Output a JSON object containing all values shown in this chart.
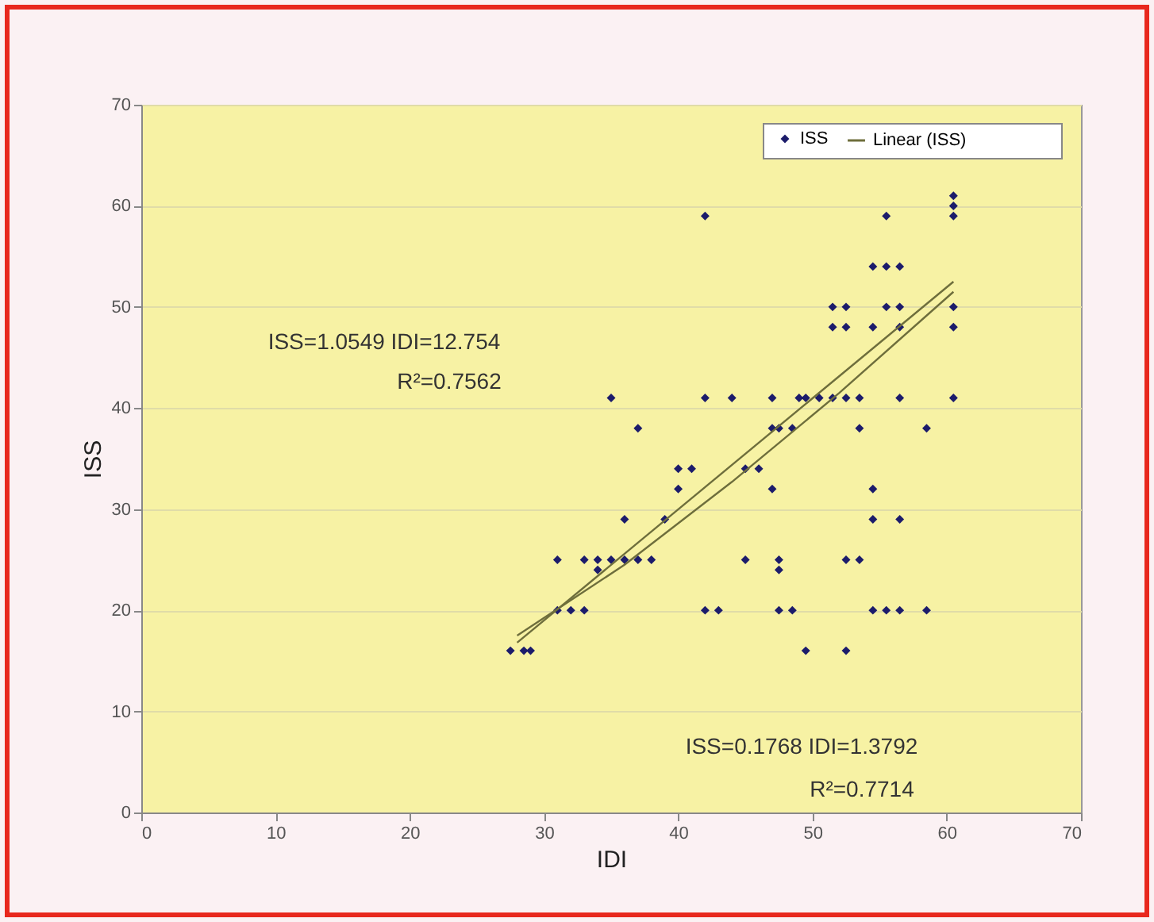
{
  "chart_data": {
    "type": "scatter",
    "xlabel": "IDI",
    "ylabel": "ISS",
    "xlim": [
      0,
      70
    ],
    "ylim": [
      0,
      70
    ],
    "xticks": [
      0,
      10,
      20,
      30,
      40,
      50,
      60,
      70
    ],
    "yticks": [
      0,
      10,
      20,
      30,
      40,
      50,
      60,
      70
    ],
    "grid": "y",
    "legend": "top right",
    "series": [
      {
        "name": "ISS",
        "marker": "diamond",
        "color": "#1c1c6b",
        "x": [
          27.5,
          28.5,
          29,
          49.5,
          52.5,
          31,
          32,
          33,
          42,
          43,
          47.5,
          48.5,
          54.5,
          55.5,
          56.5,
          58.5,
          34,
          47.5,
          31,
          33,
          34,
          35,
          36,
          37,
          38,
          45,
          47.5,
          52.5,
          53.5,
          36,
          39,
          54.5,
          56.5,
          40,
          47,
          54.5,
          40,
          41,
          45,
          46,
          37,
          47,
          47.5,
          48.5,
          53.5,
          58.5,
          35,
          42,
          44,
          47,
          49,
          49.5,
          50.5,
          51.5,
          52.5,
          53.5,
          56.5,
          60.5,
          51.5,
          52.5,
          54.5,
          56.5,
          60.5,
          51.5,
          52.5,
          55.5,
          56.5,
          60.5,
          54.5,
          55.5,
          56.5,
          42,
          55.5,
          60.5,
          60.5,
          60.5
        ],
        "values": [
          16,
          16,
          16,
          16,
          16,
          20,
          20,
          20,
          20,
          20,
          20,
          20,
          20,
          20,
          20,
          20,
          24,
          24,
          25,
          25,
          25,
          25,
          25,
          25,
          25,
          25,
          25,
          25,
          25,
          29,
          29,
          29,
          29,
          32,
          32,
          32,
          34,
          34,
          34,
          34,
          38,
          38,
          38,
          38,
          38,
          38,
          41,
          41,
          41,
          41,
          41,
          41,
          41,
          41,
          41,
          41,
          41,
          41,
          48,
          48,
          48,
          48,
          48,
          50,
          50,
          50,
          50,
          50,
          54,
          54,
          54,
          59,
          59,
          59,
          60,
          61
        ]
      },
      {
        "name": "Linear (ISS)",
        "type": "line",
        "marker": "none",
        "line_style": "solid",
        "color": "#6e6e3c",
        "x": [
          28,
          60.5
        ],
        "values": [
          16.8,
          52.5
        ]
      },
      {
        "type": "line",
        "marker": "none",
        "line_style": "solid",
        "color": "#6e6e3c",
        "x": [
          28,
          36,
          44,
          52,
          60.5
        ],
        "values": [
          17.5,
          24.5,
          32.7,
          41.5,
          51.5
        ]
      }
    ],
    "annotations": [
      "ISS=1.0549  IDI=12.754",
      "R²=0.7562",
      "ISS=0.1768  IDI=1.3792",
      "R²=0.7714"
    ]
  }
}
